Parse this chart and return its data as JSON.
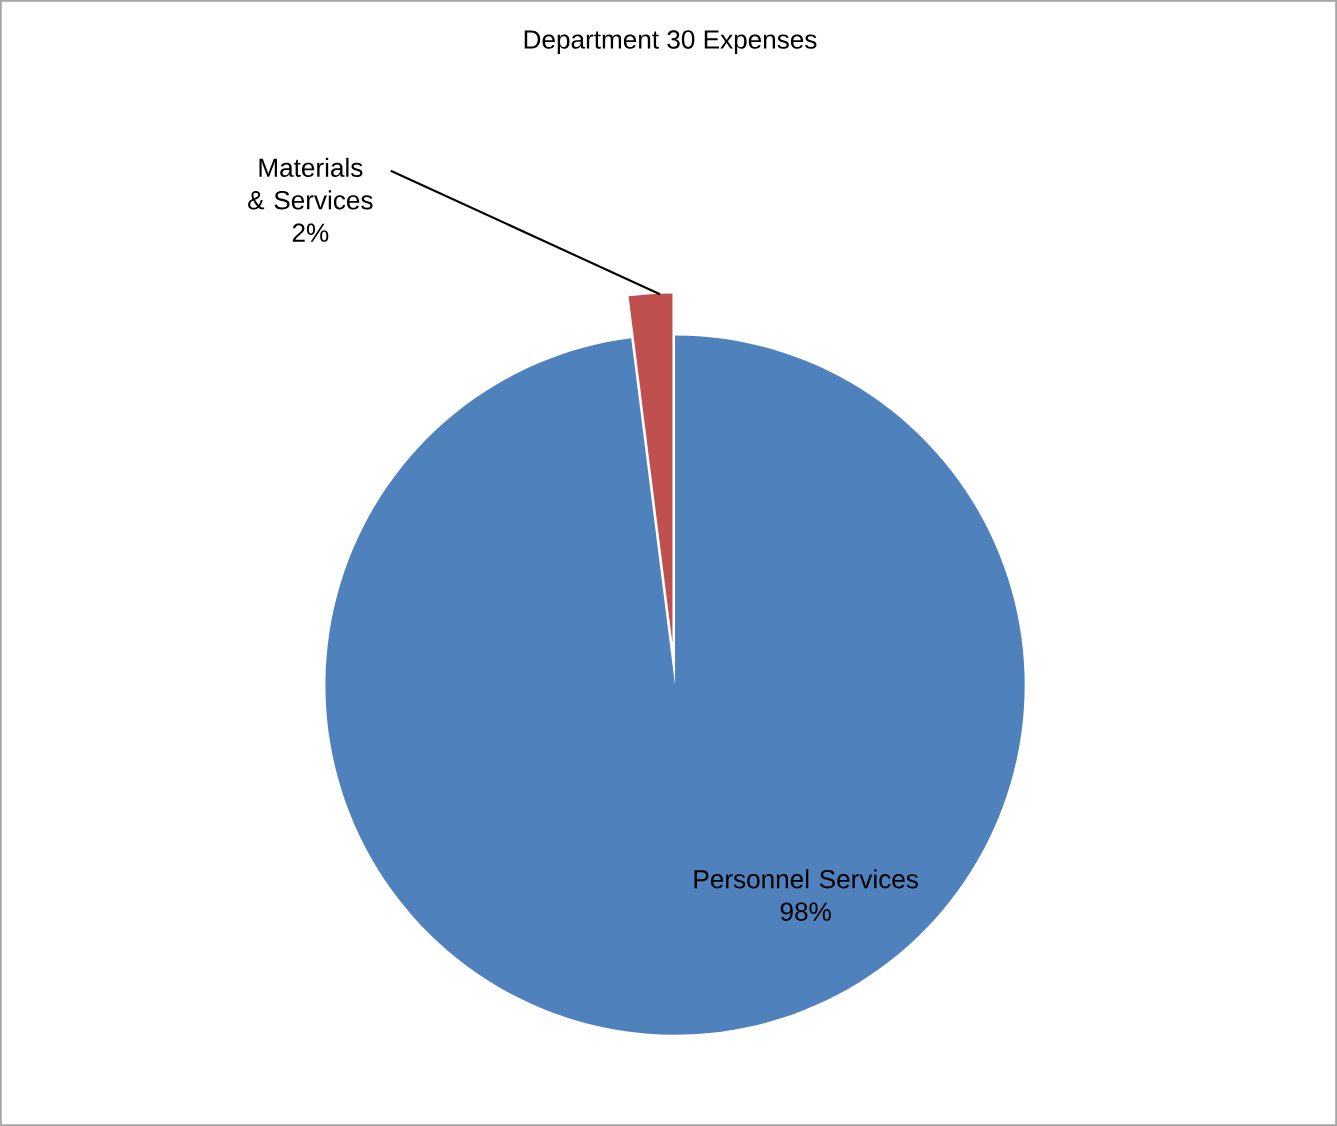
{
  "chart_data": {
    "type": "pie",
    "title": "Department 30 Expenses",
    "categories": [
      "Personnel Services",
      "Materials & Services"
    ],
    "values": [
      98,
      2
    ],
    "colors": [
      "#4f81bd",
      "#c0504d"
    ],
    "value_labels": [
      "98%",
      "2%"
    ]
  }
}
